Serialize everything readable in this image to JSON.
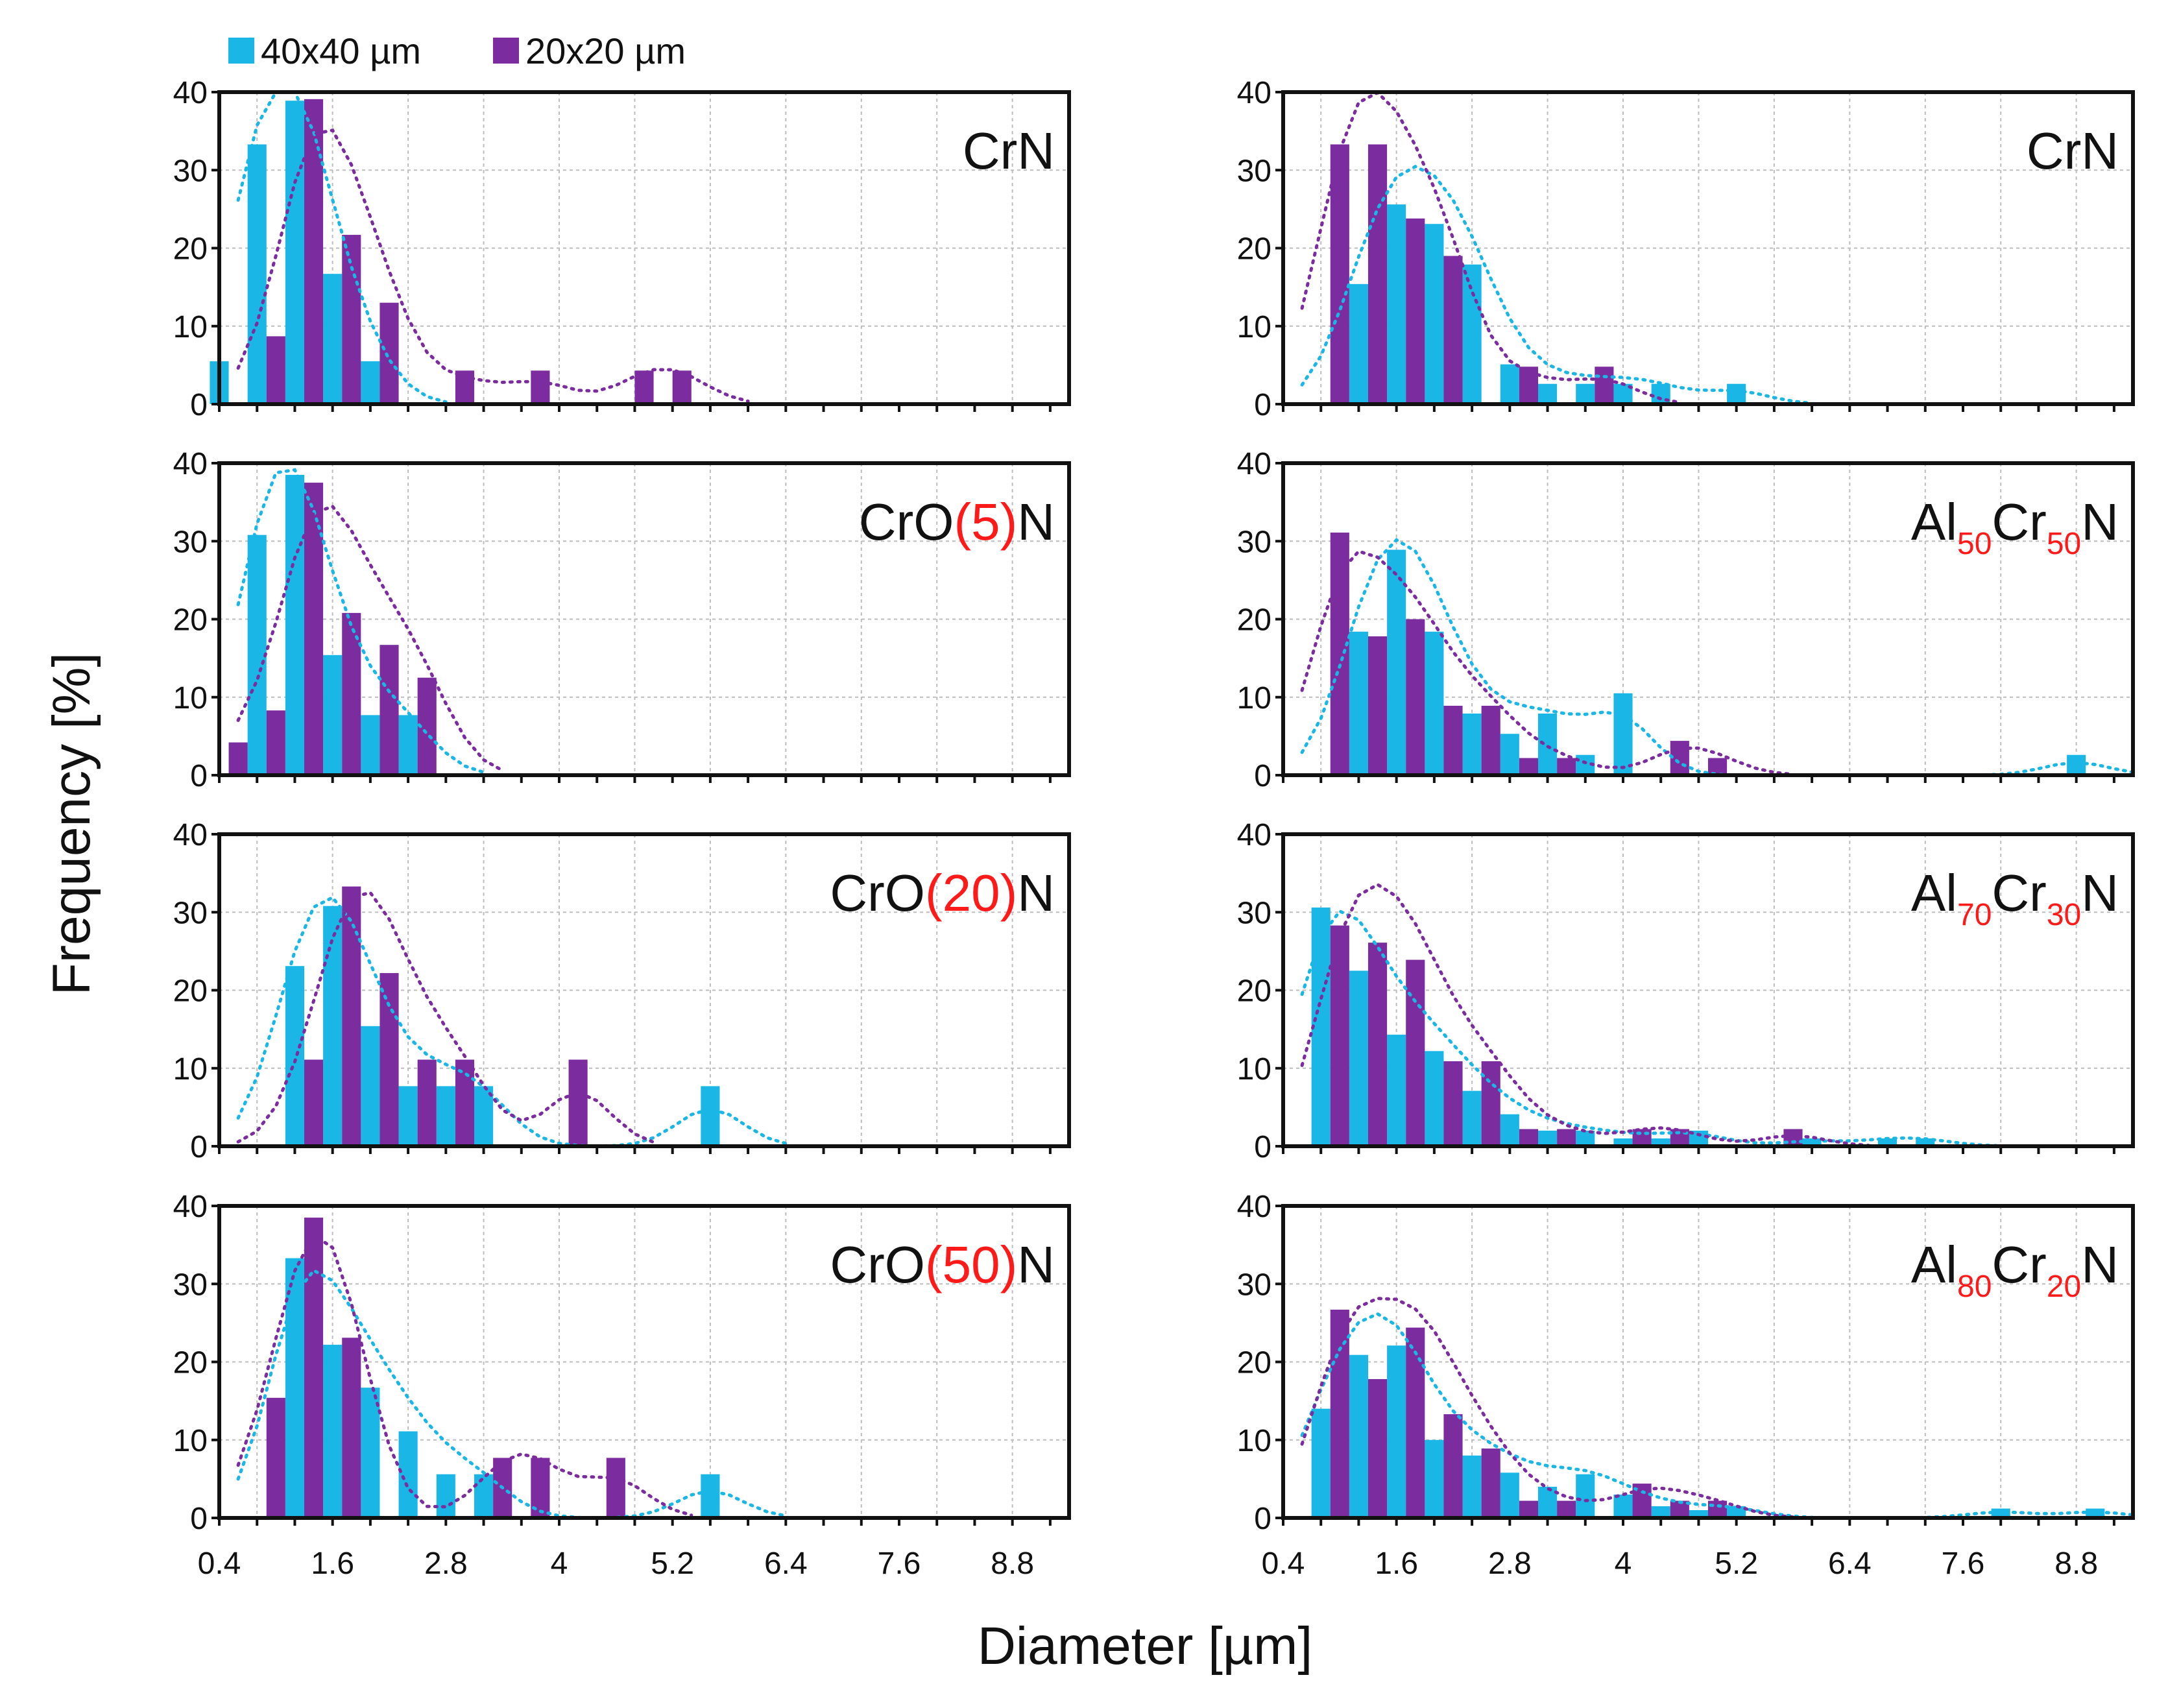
{
  "chart_data": {
    "type": "bar",
    "ylabel": "Frequency [%]",
    "xlabel": "Diameter [µm]",
    "xticks": [
      "0.4",
      "1.6",
      "2.8",
      "4",
      "5.2",
      "6.4",
      "7.6",
      "8.8"
    ],
    "x_tick_values": [
      0.4,
      1.6,
      2.8,
      4,
      5.2,
      6.4,
      7.6,
      8.8
    ],
    "xlim": [
      0.4,
      9.4
    ],
    "ylim": [
      0,
      40
    ],
    "yticks": [
      "0",
      "10",
      "20",
      "30",
      "40"
    ],
    "grid": true,
    "legend": {
      "position": "top-left",
      "entries": [
        {
          "name": "40x40 µm",
          "color": "#1ab7e6"
        },
        {
          "name": "20x20 µm",
          "color": "#7b2c9e"
        }
      ]
    },
    "trend_lines": "dotted moving-average line per series",
    "highlight_color": "#ff1a1a",
    "panels": [
      {
        "title": [
          {
            "text": "CrN",
            "style": "normal"
          }
        ],
        "series": [
          {
            "name": "40x40 µm",
            "points": [
              [
                0.4,
                5.5
              ],
              [
                0.8,
                33.3
              ],
              [
                1.2,
                38.9
              ],
              [
                1.6,
                16.7
              ],
              [
                2.0,
                5.5
              ]
            ]
          },
          {
            "name": "20x20 µm",
            "points": [
              [
                1.0,
                8.7
              ],
              [
                1.4,
                39.1
              ],
              [
                1.8,
                21.7
              ],
              [
                2.2,
                13.0
              ],
              [
                3.0,
                4.3
              ],
              [
                3.8,
                4.3
              ],
              [
                4.9,
                4.3
              ],
              [
                5.3,
                4.3
              ]
            ]
          }
        ]
      },
      {
        "title": [
          {
            "text": "CrN",
            "style": "normal"
          }
        ],
        "series": [
          {
            "name": "40x40 µm",
            "points": [
              [
                1.2,
                15.4
              ],
              [
                1.6,
                25.6
              ],
              [
                2.0,
                23.1
              ],
              [
                2.4,
                17.9
              ],
              [
                2.8,
                5.1
              ],
              [
                3.2,
                2.6
              ],
              [
                3.6,
                2.6
              ],
              [
                4.0,
                2.6
              ],
              [
                4.4,
                2.6
              ],
              [
                5.2,
                2.6
              ]
            ]
          },
          {
            "name": "20x20 µm",
            "points": [
              [
                1.0,
                33.3
              ],
              [
                1.4,
                33.3
              ],
              [
                1.8,
                23.8
              ],
              [
                2.2,
                19.0
              ],
              [
                3.0,
                4.8
              ],
              [
                3.8,
                4.8
              ]
            ]
          }
        ]
      },
      {
        "title": [
          {
            "text": "CrO",
            "style": "normal"
          },
          {
            "text": "(5)",
            "style": "red"
          },
          {
            "text": "N",
            "style": "normal"
          }
        ],
        "series": [
          {
            "name": "40x40 µm",
            "points": [
              [
                0.8,
                30.8
              ],
              [
                1.2,
                38.5
              ],
              [
                1.6,
                15.4
              ],
              [
                2.0,
                7.7
              ],
              [
                2.4,
                7.7
              ]
            ]
          },
          {
            "name": "20x20 µm",
            "points": [
              [
                0.6,
                4.2
              ],
              [
                1.0,
                8.3
              ],
              [
                1.4,
                37.5
              ],
              [
                1.8,
                20.8
              ],
              [
                2.2,
                16.7
              ],
              [
                2.6,
                12.5
              ]
            ]
          }
        ]
      },
      {
        "title": [
          {
            "text": "Al",
            "style": "normal"
          },
          {
            "text": "50",
            "style": "red-sub"
          },
          {
            "text": "Cr",
            "style": "normal"
          },
          {
            "text": "50",
            "style": "red-sub"
          },
          {
            "text": "N",
            "style": "normal"
          }
        ],
        "series": [
          {
            "name": "40x40 µm",
            "points": [
              [
                1.2,
                18.4
              ],
              [
                1.6,
                28.9
              ],
              [
                2.0,
                18.4
              ],
              [
                2.4,
                7.9
              ],
              [
                2.8,
                5.3
              ],
              [
                3.2,
                7.9
              ],
              [
                3.6,
                2.6
              ],
              [
                4.0,
                10.5
              ],
              [
                8.8,
                2.6
              ]
            ]
          },
          {
            "name": "20x20 µm",
            "points": [
              [
                1.0,
                31.1
              ],
              [
                1.4,
                17.8
              ],
              [
                1.8,
                20.0
              ],
              [
                2.2,
                8.9
              ],
              [
                2.6,
                8.9
              ],
              [
                3.0,
                2.2
              ],
              [
                3.4,
                2.2
              ],
              [
                4.6,
                4.4
              ],
              [
                5.0,
                2.2
              ]
            ]
          }
        ]
      },
      {
        "title": [
          {
            "text": "CrO",
            "style": "normal"
          },
          {
            "text": "(20)",
            "style": "red"
          },
          {
            "text": "N",
            "style": "normal"
          }
        ],
        "series": [
          {
            "name": "40x40 µm",
            "points": [
              [
                1.2,
                23.1
              ],
              [
                1.6,
                30.8
              ],
              [
                2.0,
                15.4
              ],
              [
                2.4,
                7.7
              ],
              [
                2.8,
                7.7
              ],
              [
                3.2,
                7.7
              ],
              [
                5.6,
                7.7
              ]
            ]
          },
          {
            "name": "20x20 µm",
            "points": [
              [
                1.4,
                11.1
              ],
              [
                1.8,
                33.3
              ],
              [
                2.2,
                22.2
              ],
              [
                2.6,
                11.1
              ],
              [
                3.0,
                11.1
              ],
              [
                4.2,
                11.1
              ]
            ]
          }
        ]
      },
      {
        "title": [
          {
            "text": "Al",
            "style": "normal"
          },
          {
            "text": "70",
            "style": "red-sub"
          },
          {
            "text": "Cr",
            "style": "normal"
          },
          {
            "text": "30",
            "style": "red-sub"
          },
          {
            "text": "N",
            "style": "normal"
          }
        ],
        "series": [
          {
            "name": "40x40 µm",
            "points": [
              [
                0.8,
                30.6
              ],
              [
                1.2,
                22.5
              ],
              [
                1.6,
                14.3
              ],
              [
                2.0,
                12.2
              ],
              [
                2.4,
                7.1
              ],
              [
                2.8,
                4.1
              ],
              [
                3.2,
                2.0
              ],
              [
                3.6,
                2.0
              ],
              [
                4.0,
                1.0
              ],
              [
                4.4,
                1.0
              ],
              [
                4.8,
                2.0
              ],
              [
                6.0,
                1.0
              ],
              [
                6.8,
                1.0
              ],
              [
                7.2,
                1.0
              ]
            ]
          },
          {
            "name": "20x20 µm",
            "points": [
              [
                1.0,
                28.3
              ],
              [
                1.4,
                26.1
              ],
              [
                1.8,
                23.9
              ],
              [
                2.2,
                10.9
              ],
              [
                2.6,
                10.9
              ],
              [
                3.0,
                2.2
              ],
              [
                3.4,
                2.2
              ],
              [
                4.2,
                2.2
              ],
              [
                4.6,
                2.2
              ],
              [
                5.8,
                2.2
              ]
            ]
          }
        ]
      },
      {
        "title": [
          {
            "text": "CrO",
            "style": "normal"
          },
          {
            "text": "(50)",
            "style": "red"
          },
          {
            "text": "N",
            "style": "normal"
          }
        ],
        "series": [
          {
            "name": "40x40 µm",
            "points": [
              [
                1.2,
                33.3
              ],
              [
                1.6,
                22.2
              ],
              [
                2.0,
                16.7
              ],
              [
                2.4,
                11.1
              ],
              [
                2.8,
                5.6
              ],
              [
                3.2,
                5.6
              ],
              [
                5.6,
                5.6
              ]
            ]
          },
          {
            "name": "20x20 µm",
            "points": [
              [
                1.0,
                15.4
              ],
              [
                1.4,
                38.5
              ],
              [
                1.8,
                23.1
              ],
              [
                3.4,
                7.7
              ],
              [
                3.8,
                7.7
              ],
              [
                4.6,
                7.7
              ]
            ]
          }
        ]
      },
      {
        "title": [
          {
            "text": "Al",
            "style": "normal"
          },
          {
            "text": "80",
            "style": "red-sub"
          },
          {
            "text": "Cr",
            "style": "normal"
          },
          {
            "text": "20",
            "style": "red-sub"
          },
          {
            "text": "N",
            "style": "normal"
          }
        ],
        "series": [
          {
            "name": "40x40 µm",
            "points": [
              [
                0.8,
                14.0
              ],
              [
                1.2,
                20.9
              ],
              [
                1.6,
                22.1
              ],
              [
                2.0,
                10.0
              ],
              [
                2.4,
                8.0
              ],
              [
                2.8,
                5.8
              ],
              [
                3.2,
                4.0
              ],
              [
                3.6,
                5.6
              ],
              [
                4.0,
                3.0
              ],
              [
                4.4,
                1.5
              ],
              [
                4.8,
                1.0
              ],
              [
                5.2,
                1.5
              ],
              [
                8.0,
                1.2
              ],
              [
                9.0,
                1.2
              ]
            ]
          },
          {
            "name": "20x20 µm",
            "points": [
              [
                1.0,
                26.7
              ],
              [
                1.4,
                17.8
              ],
              [
                1.8,
                24.4
              ],
              [
                2.2,
                13.3
              ],
              [
                2.6,
                8.9
              ],
              [
                3.0,
                2.2
              ],
              [
                3.4,
                2.2
              ],
              [
                4.2,
                4.4
              ],
              [
                4.6,
                2.2
              ],
              [
                5.0,
                2.2
              ]
            ]
          }
        ]
      }
    ]
  }
}
